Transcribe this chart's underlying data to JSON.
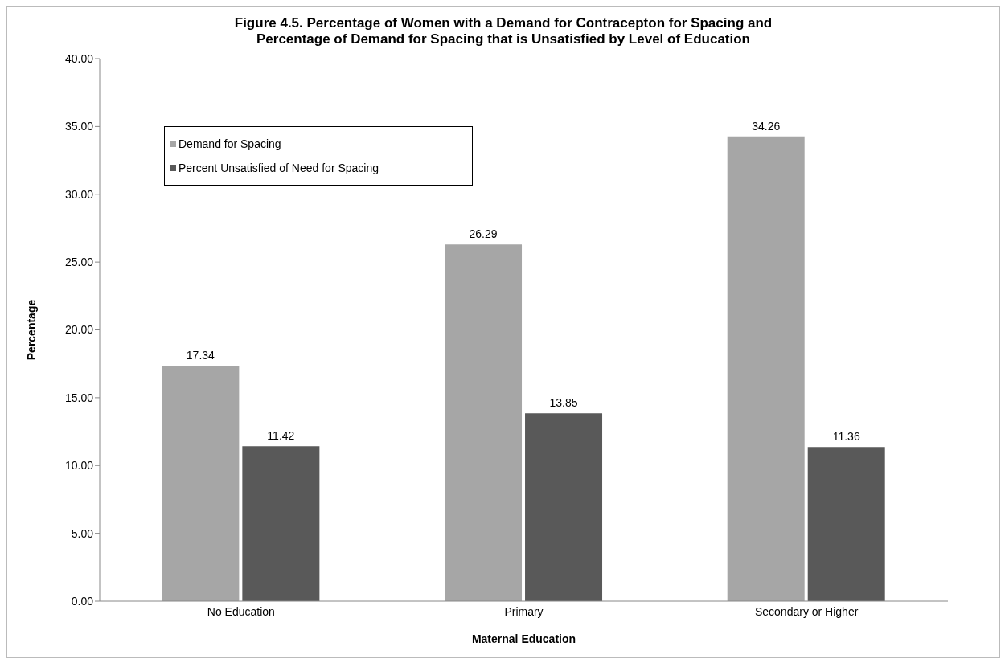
{
  "chart_data": {
    "type": "bar",
    "title": "Figure 4.5. Percentage of Women with a Demand for Contracepton for Spacing and\nPercentage of Demand for Spacing that is Unsatisfied by Level of Education",
    "xlabel": "Maternal Education",
    "ylabel": "Percentage",
    "categories": [
      "No Education",
      "Primary",
      "Secondary or Higher"
    ],
    "series": [
      {
        "name": "Demand for Spacing",
        "color": "#a6a6a6",
        "values": [
          17.34,
          26.29,
          34.26
        ]
      },
      {
        "name": "Percent Unsatisfied of Need for Spacing",
        "color": "#595959",
        "values": [
          11.42,
          13.85,
          11.36
        ]
      }
    ],
    "ylim": [
      0,
      40
    ],
    "yticks": [
      {
        "value": 0,
        "label": "0.00"
      },
      {
        "value": 5,
        "label": "5.00"
      },
      {
        "value": 10,
        "label": "10.00"
      },
      {
        "value": 15,
        "label": "15.00"
      },
      {
        "value": 20,
        "label": "20.00"
      },
      {
        "value": 25,
        "label": "25.00"
      },
      {
        "value": 30,
        "label": "30.00"
      },
      {
        "value": 35,
        "label": "35.00"
      },
      {
        "value": 40,
        "label": "40.00"
      }
    ],
    "data_labels": true,
    "legend": "top left",
    "grid": false
  }
}
